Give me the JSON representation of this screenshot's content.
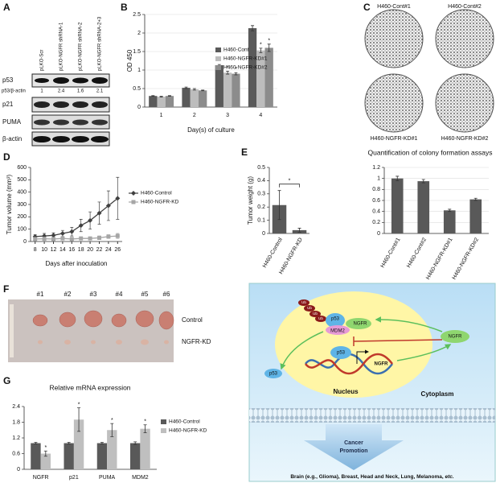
{
  "panel_labels": [
    "A",
    "B",
    "C",
    "D",
    "E",
    "F",
    "G",
    "H"
  ],
  "blot": {
    "lanes": [
      "pLKO-Scr",
      "pLKO-NGFR shRNA-1",
      "pLKO-NGFR shRNA-2",
      "pLKO-NGFR shRNA-2+3"
    ],
    "rows": [
      "p53",
      "p21",
      "PUMA",
      "β-actin"
    ],
    "ratio_label": "p53/β-actin",
    "ratios": [
      1,
      2.4,
      1.6,
      2.1
    ]
  },
  "colony_plates": [
    "H460-Cont#1",
    "H460-Cont#2",
    "H460-NGFR-KD#1",
    "H460-NGFR-KD#2"
  ],
  "tumor_photo": {
    "columns": [
      "#1",
      "#2",
      "#3",
      "#4",
      "#5",
      "#6"
    ],
    "rows": [
      "Control",
      "NGFR-KD"
    ]
  },
  "diagram": {
    "ub": [
      "Ub",
      "Ub",
      "Ub",
      "Ub"
    ],
    "complex": [
      "p53",
      "MDM2",
      "NGFR"
    ],
    "dna_p53": "p53",
    "gene": "NGFR",
    "cyto_ngfr": "NGFR",
    "free_p53": "p53",
    "nucleus": "Nucleus",
    "cytoplasm": "Cytoplasm",
    "outcome": [
      "Cancer",
      "Promotion"
    ],
    "cancers": [
      "Brain (e.g., Glioma), Breast, Head and Neck, Lung, Melanoma,",
      "etc."
    ]
  },
  "chart_data": [
    {
      "type": "bar",
      "y_label": "OD 450",
      "x_label": "Day(s) of culture",
      "categories": [
        "1",
        "2",
        "3",
        "4"
      ],
      "series": [
        {
          "name": "H460-Cont",
          "color": "#5a5a5a",
          "values": [
            0.3,
            0.52,
            1.13,
            2.13
          ],
          "errors": [
            0.01,
            0.02,
            0.02,
            0.07
          ]
        },
        {
          "name": "H460-NGFR-KD#1",
          "color": "#bdbdbd",
          "values": [
            0.28,
            0.48,
            0.93,
            1.53
          ],
          "errors": [
            0.01,
            0.02,
            0.04,
            0.06
          ]
        },
        {
          "name": "H460-NGFR-KD#2",
          "color": "#8c8c8c",
          "values": [
            0.3,
            0.45,
            0.9,
            1.6
          ],
          "errors": [
            0.01,
            0.01,
            0.03,
            0.1
          ]
        }
      ],
      "ylim": [
        0,
        2.5
      ],
      "yticks": [
        0,
        0.5,
        1,
        1.5,
        2,
        2.5
      ],
      "grid": true,
      "legend": "right",
      "annotations": [
        {
          "text": "*",
          "category": "3",
          "series": "H460-NGFR-KD#1"
        },
        {
          "text": "*",
          "category": "3",
          "series": "H460-NGFR-KD#2"
        },
        {
          "text": "*",
          "category": "4",
          "series": "H460-NGFR-KD#1"
        },
        {
          "text": "*",
          "category": "4",
          "series": "H460-NGFR-KD#2"
        }
      ]
    },
    {
      "type": "bar",
      "title": "Quantification of colony formation assays",
      "categories": [
        "H460-Cont#1",
        "H460-Cont#2",
        "H460-NGFR-KD#1",
        "H460-NGFR-KD#2"
      ],
      "values": [
        1.0,
        0.95,
        0.42,
        0.62
      ],
      "errors": [
        0.04,
        0.03,
        0.02,
        0.02
      ],
      "color": "#595959",
      "ylim": [
        0,
        1.2
      ],
      "yticks": [
        0,
        0.2,
        0.4,
        0.6,
        0.8,
        1,
        1.2
      ],
      "grid": true
    },
    {
      "type": "line",
      "y_label": "Tumor volume (mm³)",
      "x_label": "Days after inoculation",
      "x": [
        8,
        10,
        12,
        14,
        16,
        18,
        20,
        22,
        24,
        26
      ],
      "xlim": [
        7,
        27
      ],
      "xticks": [
        8,
        10,
        12,
        14,
        16,
        18,
        20,
        22,
        24,
        26
      ],
      "series": [
        {
          "name": "H460-Control",
          "color": "#404040",
          "marker": "diamond",
          "values": [
            40,
            45,
            50,
            65,
            80,
            130,
            170,
            230,
            290,
            350
          ],
          "errors": [
            15,
            20,
            20,
            25,
            35,
            50,
            70,
            90,
            120,
            170
          ]
        },
        {
          "name": "H460-NGFR-KD",
          "color": "#a6a6a6",
          "marker": "square",
          "values": [
            20,
            22,
            20,
            25,
            20,
            25,
            25,
            30,
            40,
            45
          ],
          "errors": [
            10,
            10,
            10,
            10,
            10,
            10,
            10,
            15,
            15,
            20
          ]
        }
      ],
      "ylim": [
        0,
        600
      ],
      "yticks": [
        0,
        100,
        200,
        300,
        400,
        500,
        600
      ],
      "grid": false,
      "legend": "right"
    },
    {
      "type": "bar",
      "y_label": "Tumor weight (g)",
      "categories": [
        "H460-Control",
        "H460-NGFR-KD"
      ],
      "values": [
        0.215,
        0.025
      ],
      "errors": [
        0.11,
        0.015
      ],
      "color": "#595959",
      "ylim": [
        0,
        0.5
      ],
      "yticks": [
        0,
        0.1,
        0.2,
        0.3,
        0.4,
        0.5
      ],
      "grid": false,
      "annotations": [
        {
          "text": "*"
        }
      ]
    },
    {
      "type": "bar",
      "title": "Relative mRNA expression",
      "categories": [
        "NGFR",
        "p21",
        "PUMA",
        "MDM2"
      ],
      "series": [
        {
          "name": "H460-Control",
          "color": "#595959",
          "values": [
            1,
            1,
            1,
            1
          ],
          "errors": [
            0.03,
            0.03,
            0.03,
            0.05
          ]
        },
        {
          "name": "H460-NGFR-KD",
          "color": "#bfbfbf",
          "values": [
            0.6,
            1.9,
            1.5,
            1.55
          ],
          "errors": [
            0.1,
            0.45,
            0.25,
            0.15
          ]
        }
      ],
      "ylim": [
        0,
        2.4
      ],
      "yticks": [
        0,
        0.6,
        1.2,
        1.8,
        2.4
      ],
      "grid": false,
      "legend": "right",
      "annotations": [
        {
          "text": "*",
          "category": "NGFR",
          "series": "H460-NGFR-KD"
        },
        {
          "text": "*",
          "category": "p21",
          "series": "H460-NGFR-KD"
        },
        {
          "text": "*",
          "category": "PUMA",
          "series": "H460-NGFR-KD"
        },
        {
          "text": "*",
          "category": "MDM2",
          "series": "H460-NGFR-KD"
        }
      ]
    }
  ]
}
